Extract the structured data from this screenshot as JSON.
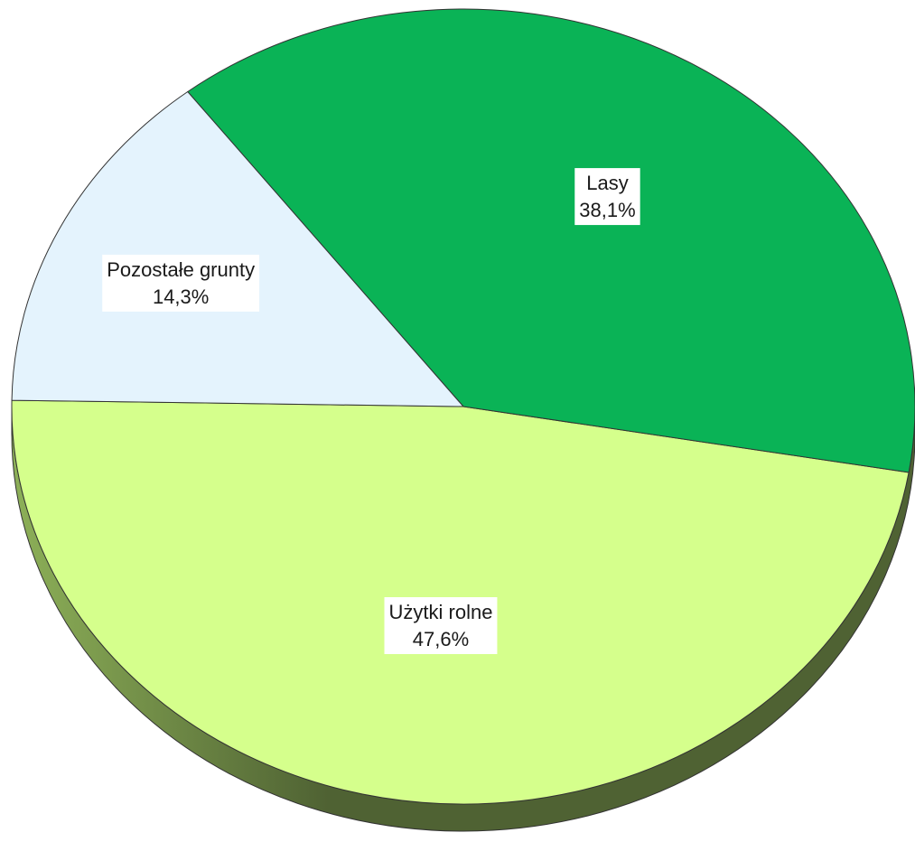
{
  "chart_data": {
    "type": "pie",
    "style": "3d",
    "slices": [
      {
        "name": "Użytki rolne",
        "value": 47.6,
        "label": "47,6%",
        "color": "#d5ff8c"
      },
      {
        "name": "Lasy",
        "value": 38.1,
        "label": "38,1%",
        "color": "#0ab356"
      },
      {
        "name": "Pozostałe grunty",
        "value": 14.3,
        "label": "14,3%",
        "color": "#e4f3fd"
      }
    ],
    "side_colors": {
      "dark": "#4f6233",
      "light": "#8db058"
    },
    "outline_color": "#333333"
  }
}
